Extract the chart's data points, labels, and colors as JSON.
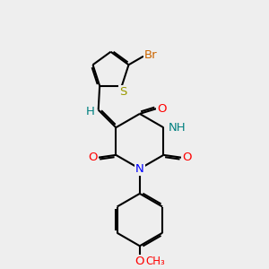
{
  "bg_color": "#eeeeee",
  "bond_color": "#000000",
  "bond_width": 1.5,
  "dbo": 0.055,
  "atom_colors": {
    "Br": "#cc6600",
    "S": "#999900",
    "O": "#ff0000",
    "N": "#0000ff",
    "NH": "#008080",
    "H": "#008080",
    "C": "#000000"
  },
  "font_size": 9.5
}
